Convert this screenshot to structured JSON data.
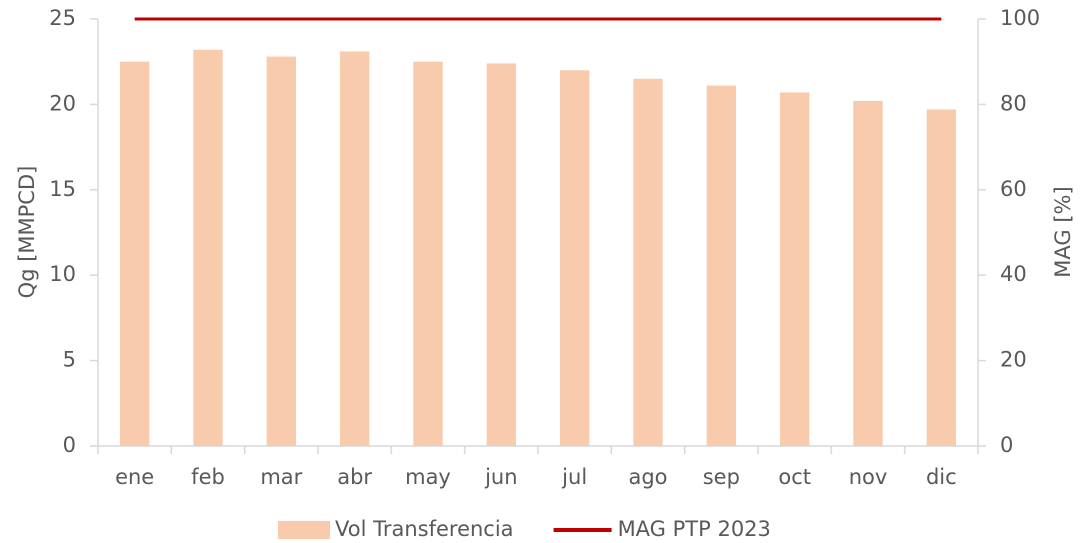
{
  "chart_data": {
    "type": "bar",
    "categories": [
      "ene",
      "feb",
      "mar",
      "abr",
      "may",
      "jun",
      "jul",
      "ago",
      "sep",
      "oct",
      "nov",
      "dic"
    ],
    "series": [
      {
        "name": "Vol Transferencia",
        "type": "bar",
        "color": "#f8cbad",
        "values": [
          22.5,
          23.2,
          22.8,
          23.1,
          22.5,
          22.4,
          22.0,
          21.5,
          21.1,
          20.7,
          20.2,
          19.7
        ]
      },
      {
        "name": "MAG PTP 2023",
        "type": "line",
        "axis": "y2",
        "color": "#c00000",
        "values": [
          100,
          100,
          100,
          100,
          100,
          100,
          100,
          100,
          100,
          100,
          100,
          100
        ]
      }
    ],
    "y_label": "Qg [MMPCD]",
    "y2_label": "MAG [%]",
    "ylim": [
      0,
      25
    ],
    "yticks": [
      0,
      5,
      10,
      15,
      20,
      25
    ],
    "y2lim": [
      0,
      100
    ],
    "y2ticks": [
      0,
      20,
      40,
      60,
      80,
      100
    ],
    "grid": false,
    "legend": "bottom"
  }
}
